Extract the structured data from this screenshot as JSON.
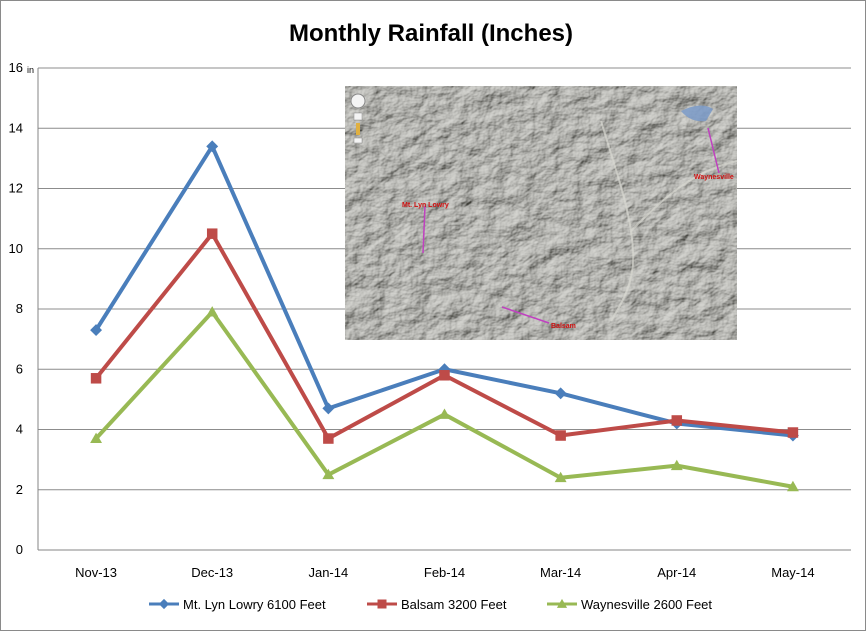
{
  "chart_data": {
    "type": "line",
    "title": "Monthly Rainfall (Inches)",
    "ylabel": "",
    "xlabel": "",
    "unit_label": "in",
    "categories": [
      "Nov-13",
      "Dec-13",
      "Jan-14",
      "Feb-14",
      "Mar-14",
      "Apr-14",
      "May-14"
    ],
    "ylim": [
      0,
      16
    ],
    "yticks": [
      0,
      2,
      4,
      6,
      8,
      10,
      12,
      14,
      16
    ],
    "grid": true,
    "legend_position": "bottom",
    "series": [
      {
        "name": "Mt. Lyn Lowry 6100 Feet",
        "color": "#4a7ebb",
        "marker": "diamond",
        "values": [
          7.3,
          13.4,
          4.7,
          6.0,
          5.2,
          4.2,
          3.8
        ]
      },
      {
        "name": "Balsam 3200 Feet",
        "color": "#be4b48",
        "marker": "square",
        "values": [
          5.7,
          10.5,
          3.7,
          5.8,
          3.8,
          4.3,
          3.9
        ]
      },
      {
        "name": "Waynesville 2600 Feet",
        "color": "#98b954",
        "marker": "triangle",
        "values": [
          3.7,
          7.9,
          2.5,
          4.5,
          2.4,
          2.8,
          2.1
        ]
      }
    ]
  },
  "inset_map": {
    "labels": {
      "lowry": "Mt. Lyn Lowry",
      "balsam": "Balsam",
      "waynesville": "Waynesville"
    },
    "label_color": "#d01010",
    "marker_color": "#c040c0"
  }
}
